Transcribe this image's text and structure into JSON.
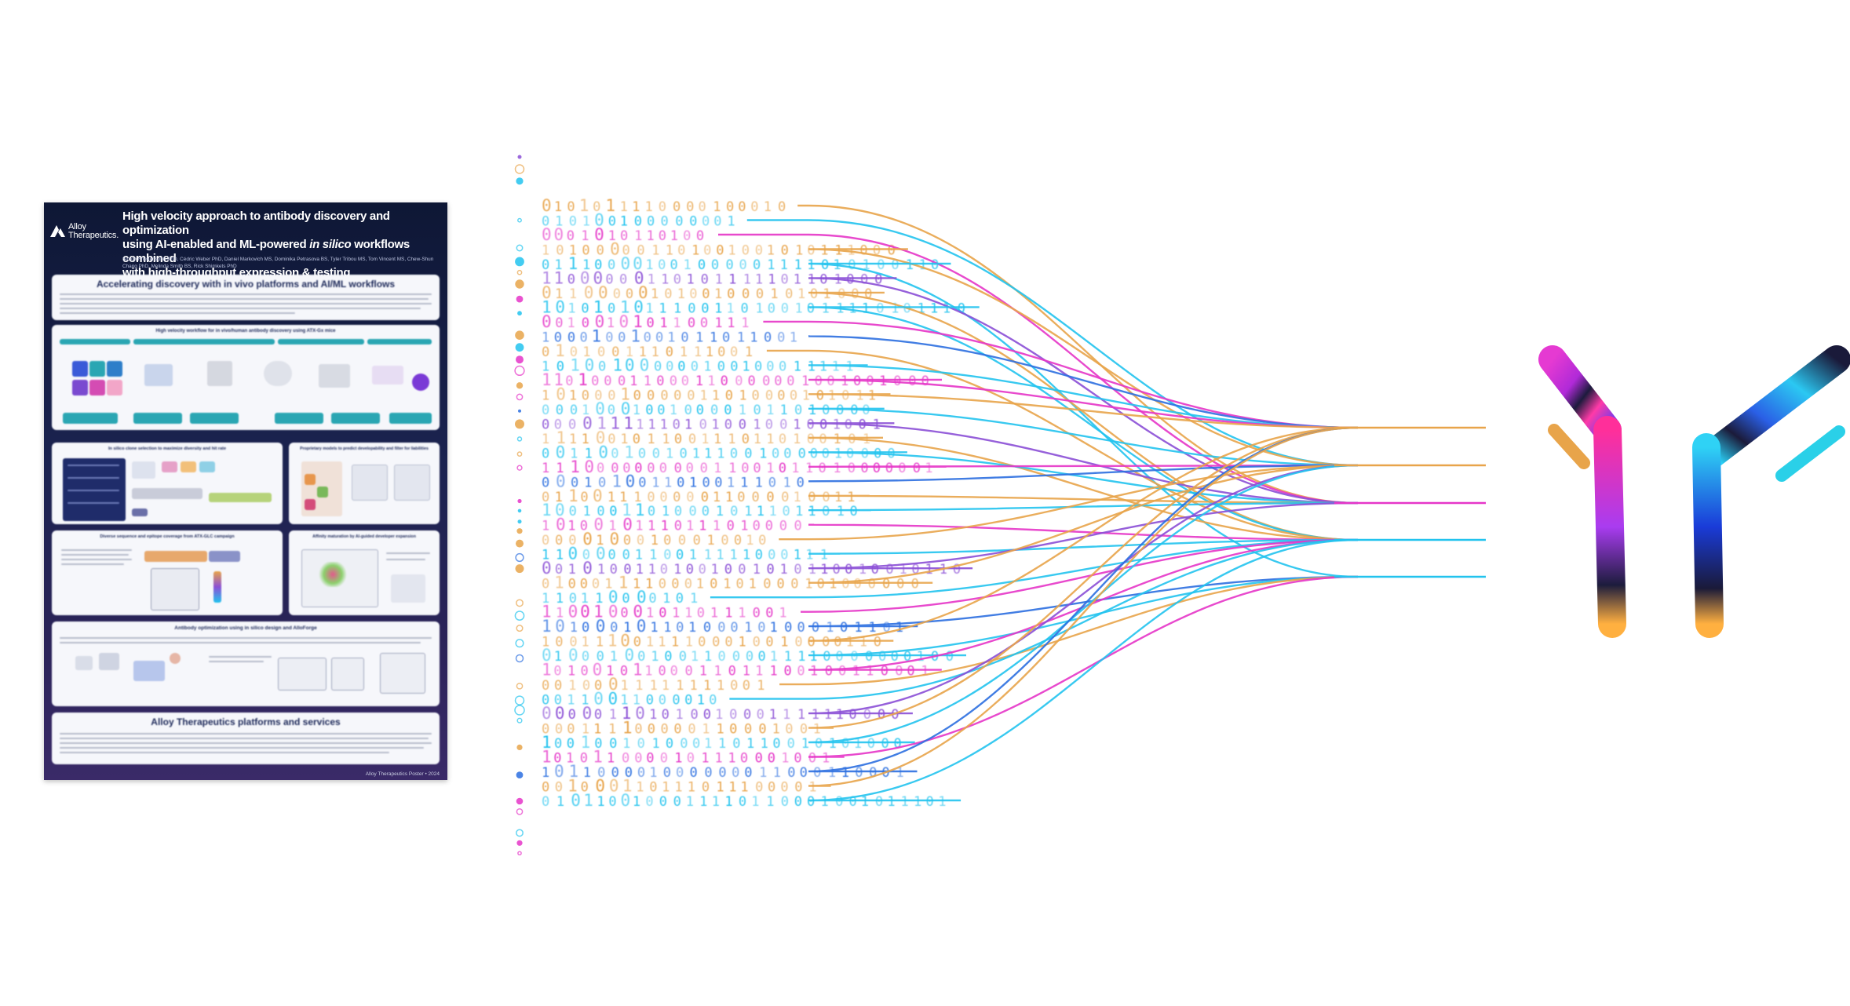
{
  "poster": {
    "brand_line1": "Alloy",
    "brand_line2": "Therapeutics.",
    "title_line1": "High velocity approach to antibody discovery and optimization",
    "title_line2a": "using AI-enabled and ML-powered",
    "title_line2_em": "in silico",
    "title_line2b": "workflows combined",
    "title_line3": "with high-throughput expression & testing",
    "authors": "Simon Friedensohn PhD, Cédric Weber PhD, Daniel Markovich MS, Dominika Petrasova BS, Tyler Tribou MS, Tom Vincent MS, Chew-Shun Chang PhD, Melinda Smith BS, Rick Shimkets PhD",
    "sections": [
      "Accelerating discovery with in vivo platforms and AI/ML workflows",
      "High velocity workflow for in vivo/human antibody discovery using ATX-Gx mice",
      "In silico clone selection to maximize diversity and hit rate",
      "Proprietary models to predict developability and filter for liabilities",
      "Diverse sequence and epitope coverage from ATX-GLC campaign",
      "Affinity maturation by AI-guided developer expansion",
      "Antibody optimization using in silico design and AlloForge",
      "Alloy Therapeutics platforms and services"
    ],
    "footer": "Alloy Therapeutics Poster • 2024"
  },
  "graphic": {
    "colors": {
      "orange": "#e8a44a",
      "cyan": "#22c3ee",
      "magenta": "#e535c8",
      "purple": "#8b4fd6",
      "blue": "#2c6fe0"
    },
    "antibody_icon": "antibody-y-icon"
  }
}
